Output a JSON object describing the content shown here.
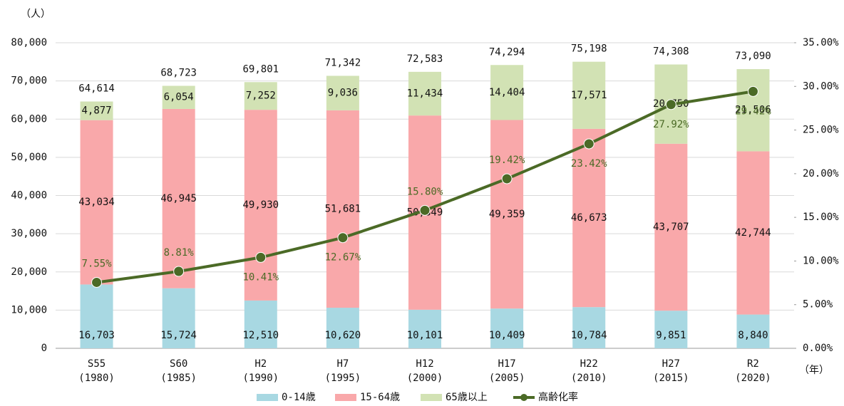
{
  "chart_data": {
    "type": "stacked_bar_line",
    "y_label": "（人）",
    "x_label": "（年）",
    "categories": [
      "S55\n(1980)",
      "S60\n(1985)",
      "H2\n(1990)",
      "H7\n(1995)",
      "H12\n(2000)",
      "H17\n(2005)",
      "H22\n(2010)",
      "H27\n(2015)",
      "R2\n(2020)"
    ],
    "series": [
      {
        "name": "0-14歳",
        "color": "#a8d8e2",
        "values": [
          16703,
          15724,
          12510,
          10620,
          10101,
          10409,
          10784,
          9851,
          8840
        ],
        "value_labels": [
          "16,703",
          "15,724",
          "12,510",
          "10,620",
          "10,101",
          "10,409",
          "10,784",
          "9,851",
          "8,840"
        ]
      },
      {
        "name": "15-64歳",
        "color": "#f9a8aa",
        "values": [
          43034,
          46945,
          49930,
          51681,
          50849,
          49359,
          46673,
          43707,
          42744
        ],
        "value_labels": [
          "43,034",
          "46,945",
          "49,930",
          "51,681",
          "50,849",
          "49,359",
          "46,673",
          "43,707",
          "42,744"
        ]
      },
      {
        "name": "65歳以上",
        "color": "#d2e2b4",
        "values": [
          4877,
          6054,
          7252,
          9036,
          11434,
          14404,
          17571,
          20750,
          21506
        ],
        "value_labels": [
          "4,877",
          "6,054",
          "7,252",
          "9,036",
          "11,434",
          "14,404",
          "17,571",
          "20,750",
          "21,506"
        ]
      },
      {
        "name": "高齢化率",
        "type": "line",
        "axis": "y2",
        "color": "#4b6a26",
        "values": [
          7.55,
          8.81,
          10.41,
          12.67,
          15.8,
          19.42,
          23.42,
          27.92,
          29.42
        ],
        "value_labels": [
          "7.55%",
          "8.81%",
          "10.41%",
          "12.67%",
          "15.80%",
          "19.42%",
          "23.42%",
          "27.92%",
          "29.42%"
        ]
      }
    ],
    "totals": {
      "values": [
        64614,
        68723,
        69801,
        71342,
        72583,
        74294,
        75198,
        74308,
        73090
      ],
      "value_labels": [
        "64,614",
        "68,723",
        "69,801",
        "71,342",
        "72,583",
        "74,294",
        "75,198",
        "74,308",
        "73,090"
      ]
    },
    "ylim": [
      0,
      80000
    ],
    "yticks": [
      0,
      {
        "value": 10000,
        "label": "10,000"
      },
      {
        "value": 20000,
        "label": "20,000"
      },
      {
        "value": 30000,
        "label": "30,000"
      },
      {
        "value": 40000,
        "label": "40,000"
      },
      {
        "value": 50000,
        "label": "50,000"
      },
      {
        "value": 60000,
        "label": "60,000"
      },
      {
        "value": 70000,
        "label": "70,000"
      },
      {
        "value": 80000,
        "label": "80,000"
      }
    ],
    "y2lim": [
      0,
      35
    ],
    "y2ticks": [
      {
        "value": 0,
        "label": "0.00%"
      },
      {
        "value": 5,
        "label": "5.00%"
      },
      {
        "value": 10,
        "label": "10.00%"
      },
      {
        "value": 15,
        "label": "15.00%"
      },
      {
        "value": 20,
        "label": "20.00%"
      },
      {
        "value": 25,
        "label": "25.00%"
      },
      {
        "value": 30,
        "label": "30.00%"
      },
      {
        "value": 35,
        "label": "35.00%"
      }
    ],
    "grid": true,
    "legend": "bottom"
  }
}
